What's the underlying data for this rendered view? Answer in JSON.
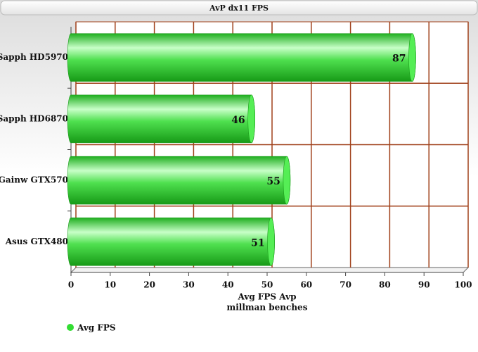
{
  "chart_data": {
    "type": "barh",
    "title": "AvP dx11 FPS",
    "categories": [
      "Sapph HD5970",
      "Sapph HD6870",
      "Gainw GTX570",
      "Asus GTX480"
    ],
    "series": [
      {
        "name": "Avg FPS",
        "color": "#33dd33",
        "values": [
          87,
          46,
          55,
          51
        ]
      }
    ],
    "xlabel": [
      "Avg FPS Avp",
      "millman benches"
    ],
    "xlim": [
      0,
      100
    ],
    "xticks": [
      0,
      10,
      20,
      30,
      40,
      50,
      60,
      70,
      80,
      90,
      100
    ],
    "grid": true
  }
}
